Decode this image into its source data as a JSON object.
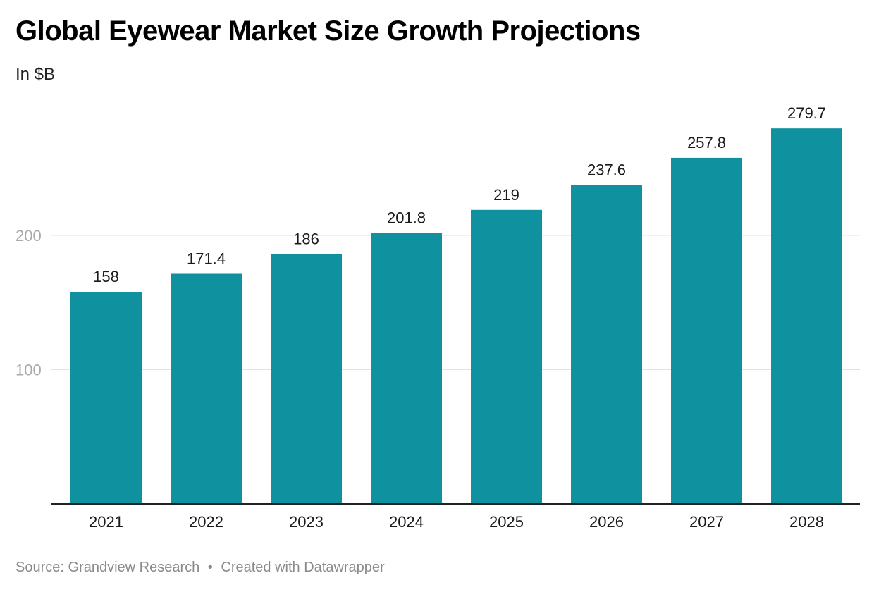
{
  "title": "Global Eyewear Market Size Growth Projections",
  "subtitle": "In $B",
  "footer": {
    "source": "Source: Grandview Research",
    "separator": "•",
    "credit": "Created with Datawrapper"
  },
  "colors": {
    "bar": "#0f91a0",
    "grid": "#e2e2e2",
    "axis": "#222222",
    "y_tick_text": "#aaaaaa",
    "label_text": "#1a1a1a"
  },
  "chart_data": {
    "type": "bar",
    "categories": [
      "2021",
      "2022",
      "2023",
      "2024",
      "2025",
      "2026",
      "2027",
      "2028"
    ],
    "values": [
      158,
      171.4,
      186,
      201.8,
      219,
      237.6,
      257.8,
      279.7
    ],
    "data_labels": [
      "158",
      "171.4",
      "186",
      "201.8",
      "219",
      "237.6",
      "257.8",
      "279.7"
    ],
    "yticks": [
      100,
      200
    ],
    "ylim": [
      0,
      300
    ],
    "title": "Global Eyewear Market Size Growth Projections",
    "subtitle": "In $B",
    "grid": true,
    "legend": "none"
  }
}
